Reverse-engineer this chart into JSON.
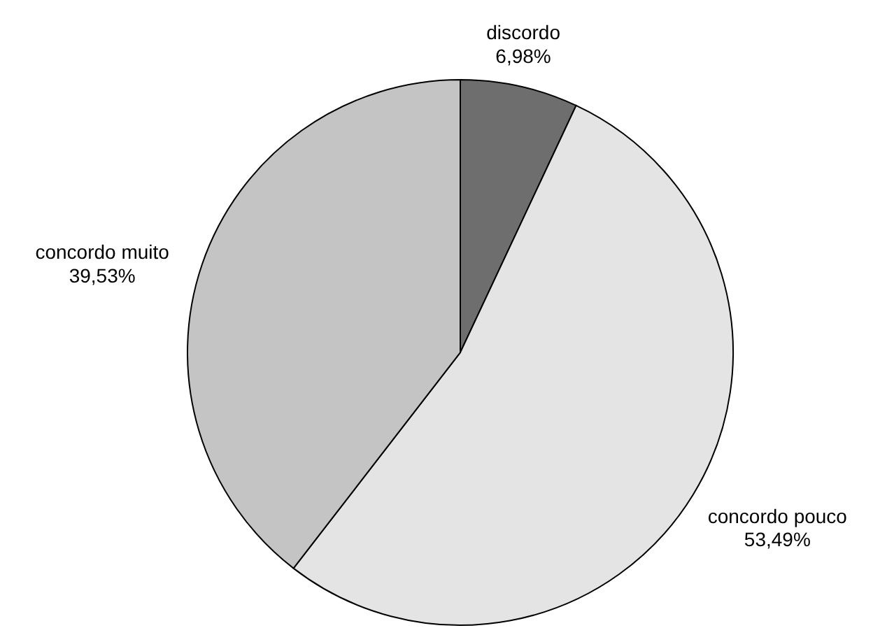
{
  "chart_data": {
    "type": "pie",
    "categories": [
      "discordo",
      "concordo pouco",
      "concordo muito"
    ],
    "values": [
      6.98,
      53.49,
      39.53
    ],
    "colors": [
      "#6e6e6e",
      "#e4e4e4",
      "#c4c4c4"
    ],
    "value_labels": [
      "6,98%",
      "53,49%",
      "39,53%"
    ]
  }
}
